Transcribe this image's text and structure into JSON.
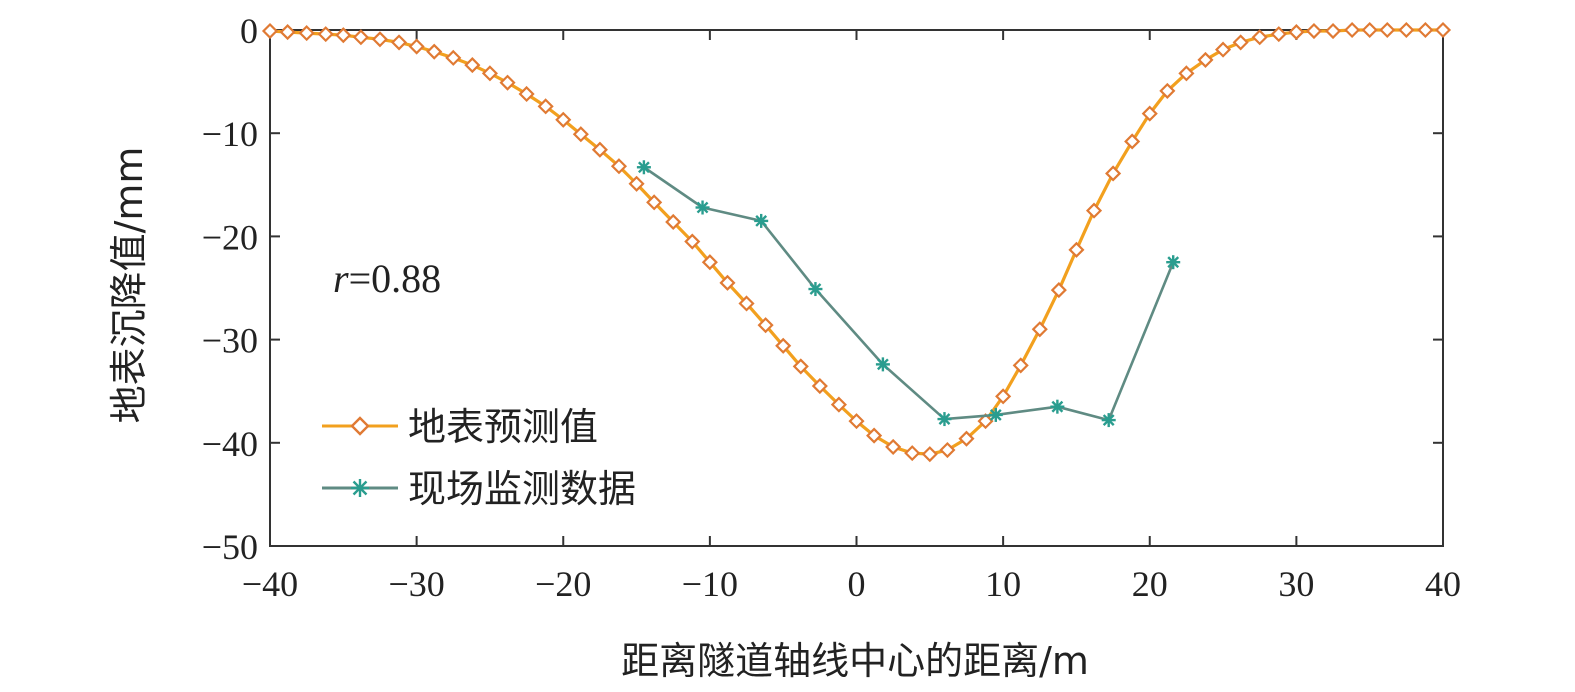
{
  "chart_data": {
    "type": "line",
    "xlabel": "距离隧道轴线中心的距离/m",
    "ylabel": "地表沉降值/mm",
    "xlim": [
      -40,
      40
    ],
    "ylim": [
      -50,
      0
    ],
    "xticks": [
      -40,
      -30,
      -20,
      -10,
      0,
      10,
      20,
      30,
      40
    ],
    "yticks": [
      0,
      -10,
      -20,
      -30,
      -40,
      -50
    ],
    "xtick_labels": [
      "−40",
      "−30",
      "−20",
      "−10",
      "0",
      "10",
      "20",
      "30",
      "40"
    ],
    "ytick_labels": [
      "0",
      "−10",
      "−20",
      "−30",
      "−40",
      "−50"
    ],
    "annotation": {
      "var": "r",
      "text": "=0.88"
    },
    "legend_position": "center-left",
    "series": [
      {
        "name": "地表预测值",
        "color": "#F2A01E",
        "marker_color": "#E07A34",
        "marker": "diamond",
        "x": [
          -40,
          -38.8,
          -37.5,
          -36.2,
          -35,
          -33.8,
          -32.5,
          -31.2,
          -30,
          -28.8,
          -27.5,
          -26.2,
          -25,
          -23.8,
          -22.5,
          -21.2,
          -20,
          -18.8,
          -17.5,
          -16.2,
          -15,
          -13.8,
          -12.5,
          -11.2,
          -10,
          -8.8,
          -7.5,
          -6.2,
          -5,
          -3.8,
          -2.5,
          -1.2,
          0,
          1.2,
          2.5,
          3.8,
          5,
          6.2,
          7.5,
          8.8,
          10,
          11.2,
          12.5,
          13.8,
          15,
          16.2,
          17.5,
          18.8,
          20,
          21.2,
          22.5,
          23.8,
          25,
          26.2,
          27.5,
          28.8,
          30,
          31.2,
          32.5,
          33.8,
          35,
          36.2,
          37.5,
          38.8,
          40
        ],
        "y": [
          -0.1,
          -0.2,
          -0.3,
          -0.4,
          -0.5,
          -0.7,
          -0.9,
          -1.2,
          -1.6,
          -2.1,
          -2.7,
          -3.4,
          -4.2,
          -5.1,
          -6.2,
          -7.4,
          -8.7,
          -10.1,
          -11.6,
          -13.2,
          -14.9,
          -16.7,
          -18.6,
          -20.5,
          -22.5,
          -24.5,
          -26.5,
          -28.6,
          -30.6,
          -32.6,
          -34.5,
          -36.3,
          -37.9,
          -39.3,
          -40.4,
          -41.0,
          -41.1,
          -40.7,
          -39.6,
          -37.9,
          -35.5,
          -32.5,
          -29.0,
          -25.2,
          -21.3,
          -17.5,
          -13.9,
          -10.8,
          -8.1,
          -5.9,
          -4.2,
          -2.9,
          -1.9,
          -1.2,
          -0.7,
          -0.4,
          -0.2,
          -0.1,
          -0.1,
          0,
          0,
          0,
          0,
          0,
          0
        ]
      },
      {
        "name": "现场监测数据",
        "color": "#5F8B83",
        "marker_color": "#2A9D8F",
        "marker": "asterisk",
        "x": [
          -14.5,
          -10.5,
          -6.5,
          -2.8,
          1.8,
          6,
          9.5,
          13.7,
          17.2,
          21.6
        ],
        "y": [
          -13.3,
          -17.2,
          -18.5,
          -25.1,
          -32.4,
          -37.7,
          -37.3,
          -36.5,
          -37.8,
          -22.5
        ]
      }
    ]
  }
}
